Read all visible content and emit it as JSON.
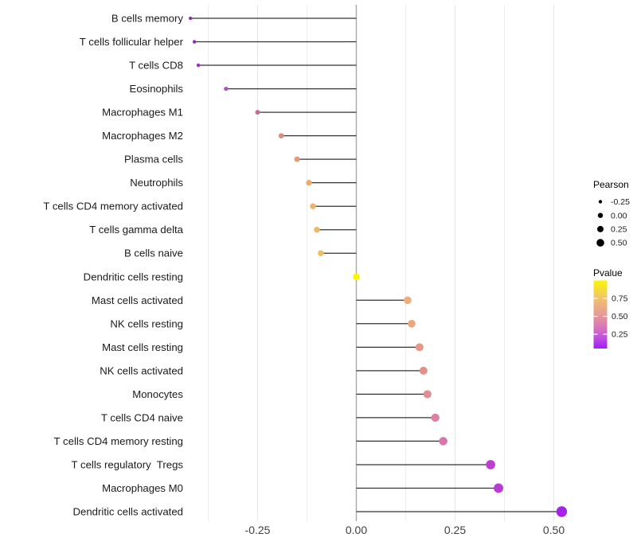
{
  "chart_data": {
    "type": "lollipop",
    "title": "",
    "xlabel": "",
    "ylabel": "",
    "xlim": [
      -0.425,
      0.535
    ],
    "x_ticks": [
      {
        "value": -0.25,
        "label": "-0.25"
      },
      {
        "value": 0.0,
        "label": "0.00"
      },
      {
        "value": 0.25,
        "label": "0.25"
      },
      {
        "value": 0.5,
        "label": "0.50"
      }
    ],
    "x_minor_ticks": [
      -0.375,
      -0.125,
      0.125,
      0.375
    ],
    "grid": "on",
    "rows": [
      {
        "label": "B cells memory",
        "pearson": -0.42,
        "color": "#8E2BA8"
      },
      {
        "label": "T cells follicular helper",
        "pearson": -0.41,
        "color": "#932DAE"
      },
      {
        "label": "T cells CD8",
        "pearson": -0.4,
        "color": "#9D33BA"
      },
      {
        "label": "Eosinophils",
        "pearson": -0.33,
        "color": "#B849C6"
      },
      {
        "label": "Macrophages M1",
        "pearson": -0.25,
        "color": "#C96B9C"
      },
      {
        "label": "Macrophages M2",
        "pearson": -0.19,
        "color": "#DB8B82"
      },
      {
        "label": "Plasma cells",
        "pearson": -0.15,
        "color": "#E59B76"
      },
      {
        "label": "Neutrophils",
        "pearson": -0.12,
        "color": "#EAAB6F"
      },
      {
        "label": "T cells CD4 memory activated",
        "pearson": -0.11,
        "color": "#EDB369"
      },
      {
        "label": "T cells gamma delta",
        "pearson": -0.1,
        "color": "#EFB964"
      },
      {
        "label": "B cells naive",
        "pearson": -0.09,
        "color": "#F1BE5F"
      },
      {
        "label": "Dendritic cells resting",
        "pearson": 0.0,
        "color": "#FDF500"
      },
      {
        "label": "Mast cells activated",
        "pearson": 0.13,
        "color": "#ECAE7B"
      },
      {
        "label": "NK cells resting",
        "pearson": 0.14,
        "color": "#EAA87F"
      },
      {
        "label": "Mast cells resting",
        "pearson": 0.16,
        "color": "#E69788"
      },
      {
        "label": "NK cells activated",
        "pearson": 0.17,
        "color": "#E39089"
      },
      {
        "label": "Monocytes",
        "pearson": 0.18,
        "color": "#E28D90"
      },
      {
        "label": "T cells CD4 naive",
        "pearson": 0.2,
        "color": "#DD7FA0"
      },
      {
        "label": "T cells CD4 memory resting",
        "pearson": 0.22,
        "color": "#D876AB"
      },
      {
        "label": "T cells regulatory  Tregs",
        "pearson": 0.34,
        "color": "#BC3FD0"
      },
      {
        "label": "Macrophages M0",
        "pearson": 0.36,
        "color": "#B93BD6"
      },
      {
        "label": "Dendritic cells activated",
        "pearson": 0.52,
        "color": "#A524E8"
      }
    ],
    "legend_size": {
      "title": "Pearson",
      "entries": [
        {
          "label": "-0.25",
          "r": 2.2
        },
        {
          "label": "0.00",
          "r": 3.2
        },
        {
          "label": "0.25",
          "r": 4.0
        },
        {
          "label": "0.50",
          "r": 4.8
        }
      ],
      "dot_color": "#000000",
      "position": "right"
    },
    "legend_color": {
      "title": "Pvalue",
      "tick_labels": [
        "0.75",
        "0.50",
        "0.25"
      ],
      "gradient_stops": [
        {
          "offset": 0.0,
          "color": "#FBF603"
        },
        {
          "offset": 0.25,
          "color": "#F2C46A"
        },
        {
          "offset": 0.5,
          "color": "#E59A96"
        },
        {
          "offset": 0.68,
          "color": "#D878B8"
        },
        {
          "offset": 0.82,
          "color": "#C454DC"
        },
        {
          "offset": 1.0,
          "color": "#A21EFA"
        }
      ],
      "position": "right"
    },
    "colors": {
      "stem": "#333333",
      "zero_line": "#a8a8a8",
      "grid_major": "#e6e6e6",
      "grid_minor": "#ededed",
      "axis_text": "#404040",
      "label_text": "#1a1a1a"
    }
  }
}
